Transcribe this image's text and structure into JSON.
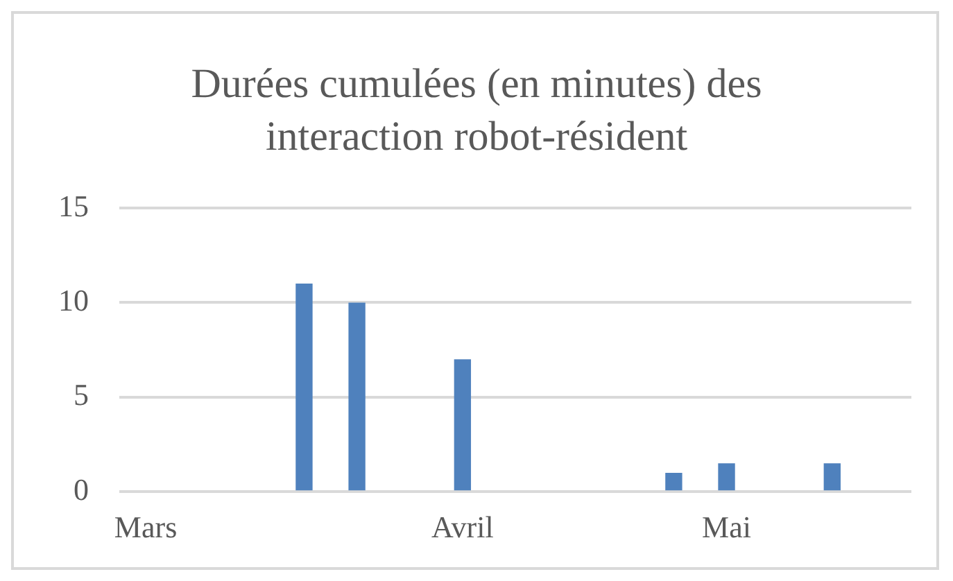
{
  "chart_data": {
    "type": "bar",
    "title": "Durées cumulées (en minutes) des interaction robot-résident",
    "categories": [
      "Mars",
      null,
      null,
      null,
      null,
      null,
      "Avril",
      null,
      null,
      null,
      null,
      "Mai",
      null,
      null,
      null
    ],
    "values": [
      null,
      null,
      null,
      11,
      10,
      null,
      7,
      null,
      null,
      null,
      1,
      1.5,
      null,
      1.5,
      null
    ],
    "color": "#4f81bd",
    "ylim": [
      0,
      15
    ],
    "yticks": [
      0,
      5,
      10,
      15
    ],
    "grid": "y"
  }
}
